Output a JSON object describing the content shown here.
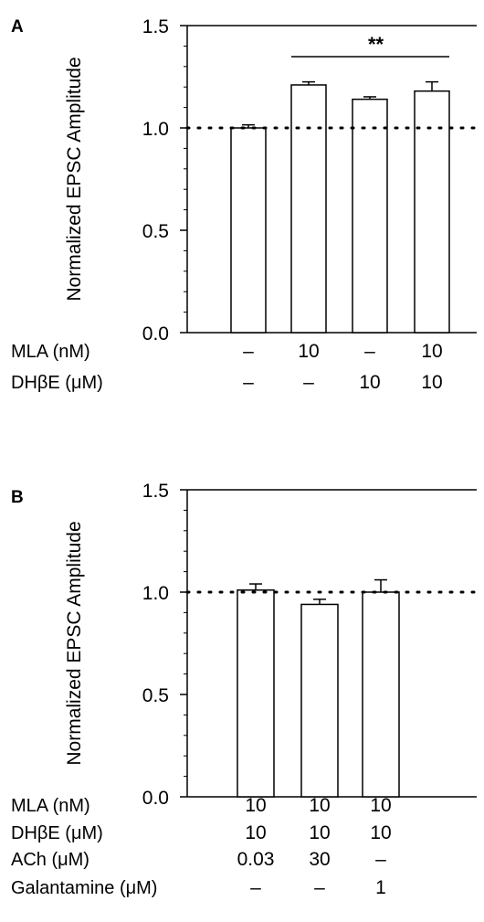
{
  "chart_data": [
    {
      "panel": "A",
      "type": "bar",
      "ylabel": "Normalized EPSC Amplitude",
      "ylim": [
        0,
        1.5
      ],
      "yticks": [
        "0.0",
        "0.5",
        "1.0",
        "1.5"
      ],
      "reference_line": 1.0,
      "values": [
        1.0,
        1.21,
        1.14,
        1.18
      ],
      "errors": [
        0.015,
        0.015,
        0.012,
        0.045
      ],
      "significance": {
        "label": "**",
        "from_bar": 1,
        "to_bar": 3
      },
      "conditions": [
        {
          "label": "MLA (nM)",
          "values": [
            "–",
            "10",
            "–",
            "10"
          ]
        },
        {
          "label": "DHβE (μM)",
          "values": [
            "–",
            "–",
            "10",
            "10"
          ]
        }
      ]
    },
    {
      "panel": "B",
      "type": "bar",
      "ylabel": "Normalized EPSC Amplitude",
      "ylim": [
        0,
        1.5
      ],
      "yticks": [
        "0.0",
        "0.5",
        "1.0",
        "1.5"
      ],
      "reference_line": 1.0,
      "values": [
        1.01,
        0.94,
        1.0
      ],
      "errors": [
        0.03,
        0.025,
        0.06
      ],
      "conditions": [
        {
          "label": "MLA (nM)",
          "values": [
            "10",
            "10",
            "10"
          ]
        },
        {
          "label": "DHβE (μM)",
          "values": [
            "10",
            "10",
            "10"
          ]
        },
        {
          "label": "ACh (μM)",
          "values": [
            "0.03",
            "30",
            "–"
          ]
        },
        {
          "label": "Galantamine (μM)",
          "values": [
            "–",
            "–",
            "1"
          ]
        }
      ]
    }
  ]
}
